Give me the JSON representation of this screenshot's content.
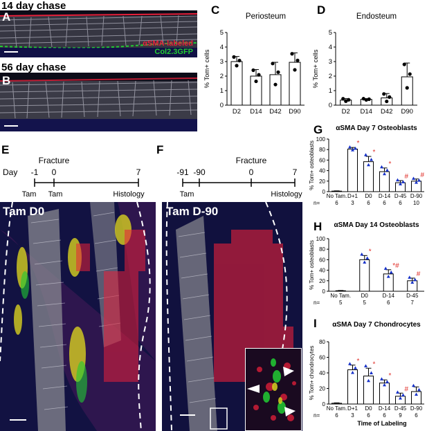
{
  "headings": {
    "top": "14 day chase",
    "mid": "56 day chase"
  },
  "panels": {
    "A": "A",
    "B": "B",
    "C": "C",
    "D": "D",
    "E": "E",
    "F": "F",
    "G": "G",
    "H": "H",
    "I": "I"
  },
  "stains": {
    "sma": "αSMA-labeled",
    "col": "Col2.3GFP"
  },
  "colors": {
    "sma": "#e8203a",
    "col": "#22cc33",
    "star": "#e0302a",
    "hash": "#e0302a",
    "marker": "#1530c8"
  },
  "timeline_E": {
    "title": "Fracture",
    "day_label": "Day",
    "ticks": [
      "-1",
      "0",
      "7"
    ],
    "events": [
      "Tam",
      "Tam",
      "Histology"
    ]
  },
  "timeline_F": {
    "title": "Fracture",
    "ticks": [
      "-91",
      "-90",
      "0",
      "7"
    ],
    "events": [
      "Tam",
      "Histology"
    ]
  },
  "image_labels": {
    "E": "Tam D0",
    "F": "Tam D-90"
  },
  "chart_data": [
    {
      "id": "C",
      "type": "bar",
      "title": "Periosteum",
      "ylabel": "% Tom+ cells",
      "categories": [
        "D2",
        "D14",
        "D42",
        "D90"
      ],
      "values": [
        3.0,
        2.0,
        2.1,
        2.95
      ],
      "errors": [
        0.35,
        0.45,
        0.85,
        0.65
      ],
      "ylim": [
        0,
        5
      ],
      "yticks": [
        "0",
        "1",
        "2",
        "3",
        "4",
        "5"
      ]
    },
    {
      "id": "D",
      "type": "bar",
      "title": "Endosteum",
      "ylabel": "% Tom+ cells",
      "categories": [
        "D2",
        "D14",
        "D42",
        "D90"
      ],
      "values": [
        0.35,
        0.4,
        0.5,
        1.95
      ],
      "errors": [
        0.1,
        0.05,
        0.3,
        0.95
      ],
      "ylim": [
        0,
        5
      ],
      "yticks": [
        "0",
        "1",
        "2",
        "3",
        "4",
        "5"
      ]
    },
    {
      "id": "G",
      "type": "bar",
      "title": "αSMA Day 7 Osteoblasts",
      "ylabel": "% Tom+ osteoblasts",
      "categories": [
        "No Tam.",
        "D+1",
        "D0",
        "D-14",
        "D-45",
        "D-90"
      ],
      "values": [
        1,
        81,
        57,
        38,
        17,
        20
      ],
      "errors": [
        0.5,
        3,
        10,
        7,
        4,
        4
      ],
      "n": [
        "6",
        "3",
        "6",
        "6",
        "6",
        "10"
      ],
      "n_label": "n=",
      "marks": [
        "",
        "*",
        "*",
        "*",
        "#",
        "#"
      ],
      "ylim": [
        0,
        100
      ],
      "yticks": [
        "0",
        "20",
        "40",
        "60",
        "80",
        "100"
      ]
    },
    {
      "id": "H",
      "type": "bar",
      "title": "αSMA Day 14 Osteoblasts",
      "ylabel": "% Tom+ osteoblasts",
      "categories": [
        "No Tam.",
        "D0",
        "D-14",
        "D-45"
      ],
      "values": [
        1,
        60,
        33,
        20
      ],
      "errors": [
        0.5,
        8,
        8,
        5
      ],
      "n": [
        "5",
        "5",
        "6",
        "7"
      ],
      "n_label": "n=",
      "marks": [
        "",
        "*",
        "*#",
        "#"
      ],
      "ylim": [
        0,
        100
      ],
      "yticks": [
        "0",
        "20",
        "40",
        "60",
        "80",
        "100"
      ]
    },
    {
      "id": "I",
      "type": "bar",
      "title": "αSMA Day 7 Chondrocytes",
      "ylabel": "% Tom+ chondrocytes",
      "xlabel": "Time of Labeling",
      "categories": [
        "No Tam.",
        "D+1",
        "D0",
        "D-14",
        "D-45",
        "D-90"
      ],
      "values": [
        1,
        44,
        36,
        27,
        10,
        16
      ],
      "errors": [
        0.5,
        6,
        10,
        4,
        4,
        6
      ],
      "n": [
        "6",
        "3",
        "6",
        "6",
        "9",
        "6"
      ],
      "n_label": "n=",
      "marks": [
        "",
        "*",
        "*",
        "*",
        "#",
        ""
      ],
      "ylim": [
        0,
        80
      ],
      "yticks": [
        "0",
        "20",
        "40",
        "60",
        "80"
      ]
    }
  ]
}
